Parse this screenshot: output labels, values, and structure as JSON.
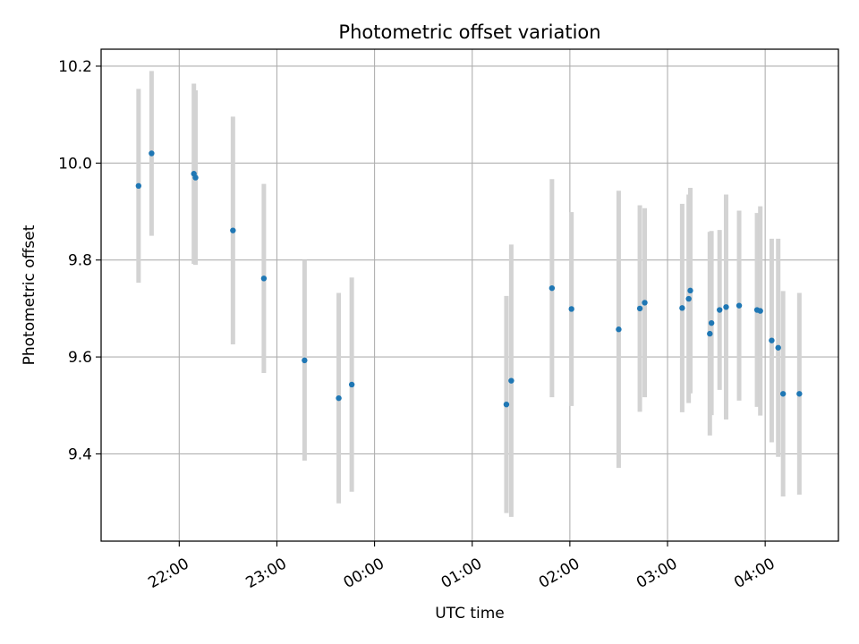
{
  "chart_data": {
    "type": "scatter",
    "title": "Photometric offset variation",
    "xlabel": "UTC time",
    "ylabel": "Photometric offset",
    "x_axis": {
      "kind": "time",
      "range": [
        "21:12",
        "04:45"
      ],
      "ticks": [
        "22:00",
        "23:00",
        "00:00",
        "01:00",
        "02:00",
        "03:00",
        "04:00"
      ]
    },
    "y_axis": {
      "range": [
        9.22,
        10.235
      ],
      "ticks": [
        "9.4",
        "9.6",
        "9.8",
        "10.0",
        "10.2"
      ]
    },
    "grid": true,
    "legend": "none",
    "colors": {
      "points": "#1f77b4",
      "errorbars": "#d3d3d3",
      "grid": "#b0b0b0"
    },
    "series": [
      {
        "points": [
          {
            "x": "21:35",
            "y": 9.953,
            "err": 0.2
          },
          {
            "x": "21:43",
            "y": 10.02,
            "err": 0.17
          },
          {
            "x": "22:09",
            "y": 9.978,
            "err": 0.186
          },
          {
            "x": "22:10",
            "y": 9.97,
            "err": 0.18
          },
          {
            "x": "22:33",
            "y": 9.861,
            "err": 0.235
          },
          {
            "x": "22:52",
            "y": 9.762,
            "err": 0.195
          },
          {
            "x": "23:17",
            "y": 9.593,
            "err": 0.207
          },
          {
            "x": "23:38",
            "y": 9.515,
            "err": 0.217
          },
          {
            "x": "23:46",
            "y": 9.543,
            "err": 0.221
          },
          {
            "x": "01:21",
            "y": 9.502,
            "err": 0.224
          },
          {
            "x": "01:24",
            "y": 9.551,
            "err": 0.281
          },
          {
            "x": "01:49",
            "y": 9.742,
            "err": 0.225
          },
          {
            "x": "02:01",
            "y": 9.699,
            "err": 0.2
          },
          {
            "x": "02:30",
            "y": 9.657,
            "err": 0.286
          },
          {
            "x": "02:43",
            "y": 9.7,
            "err": 0.213
          },
          {
            "x": "02:46",
            "y": 9.712,
            "err": 0.195
          },
          {
            "x": "03:09",
            "y": 9.701,
            "err": 0.215
          },
          {
            "x": "03:13",
            "y": 9.72,
            "err": 0.215
          },
          {
            "x": "03:14",
            "y": 9.737,
            "err": 0.212
          },
          {
            "x": "03:26",
            "y": 9.648,
            "err": 0.21
          },
          {
            "x": "03:27",
            "y": 9.67,
            "err": 0.19
          },
          {
            "x": "03:32",
            "y": 9.697,
            "err": 0.165
          },
          {
            "x": "03:36",
            "y": 9.703,
            "err": 0.232
          },
          {
            "x": "03:44",
            "y": 9.706,
            "err": 0.196
          },
          {
            "x": "03:55",
            "y": 9.697,
            "err": 0.2
          },
          {
            "x": "03:57",
            "y": 9.695,
            "err": 0.216
          },
          {
            "x": "04:04",
            "y": 9.634,
            "err": 0.21
          },
          {
            "x": "04:08",
            "y": 9.619,
            "err": 0.225
          },
          {
            "x": "04:11",
            "y": 9.524,
            "err": 0.212
          },
          {
            "x": "04:21",
            "y": 9.524,
            "err": 0.208
          }
        ]
      }
    ]
  }
}
